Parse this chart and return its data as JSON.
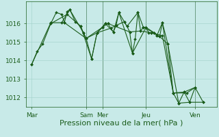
{
  "bg_color": "#c8eae8",
  "grid_color": "#a0d0c8",
  "line_color": "#1a5c1a",
  "marker_color": "#1a5c1a",
  "xlabel": "Pression niveau de la mer( hPa )",
  "xlabel_fontsize": 8,
  "tick_fontsize": 6.5,
  "ylim": [
    1011.5,
    1017.2
  ],
  "yticks": [
    1012,
    1013,
    1014,
    1015,
    1016
  ],
  "xtick_labels": [
    "Mar",
    "Sam",
    "Mer",
    "Jeu",
    "Ven"
  ],
  "xtick_positions": [
    0,
    10,
    13,
    21,
    30
  ],
  "xlim": [
    -1,
    34
  ],
  "vlines": [
    10,
    13,
    21,
    30
  ],
  "series1": [
    [
      0.0,
      1013.8
    ],
    [
      1.0,
      1014.5
    ],
    [
      2.0,
      1014.9
    ],
    [
      3.5,
      1016.0
    ],
    [
      4.5,
      1016.6
    ],
    [
      5.5,
      1016.5
    ],
    [
      6.0,
      1016.05
    ],
    [
      6.5,
      1016.65
    ],
    [
      7.0,
      1016.75
    ],
    [
      8.0,
      1016.1
    ],
    [
      9.0,
      1015.85
    ],
    [
      9.5,
      1015.5
    ],
    [
      10.0,
      1015.2
    ],
    [
      11.0,
      1014.1
    ],
    [
      12.0,
      1015.5
    ],
    [
      13.0,
      1015.8
    ],
    [
      13.5,
      1016.0
    ],
    [
      14.0,
      1016.0
    ],
    [
      14.5,
      1015.75
    ],
    [
      15.0,
      1015.55
    ],
    [
      15.5,
      1015.9
    ],
    [
      16.0,
      1016.6
    ],
    [
      17.0,
      1016.1
    ],
    [
      17.5,
      1015.85
    ],
    [
      18.0,
      1015.55
    ],
    [
      18.5,
      1014.4
    ],
    [
      19.0,
      1015.15
    ],
    [
      19.5,
      1016.6
    ],
    [
      20.0,
      1015.6
    ],
    [
      20.5,
      1015.8
    ],
    [
      21.0,
      1015.8
    ],
    [
      21.5,
      1015.5
    ],
    [
      22.0,
      1015.5
    ],
    [
      22.5,
      1015.5
    ],
    [
      23.0,
      1015.35
    ],
    [
      23.5,
      1015.3
    ],
    [
      24.0,
      1016.05
    ],
    [
      25.0,
      1014.9
    ],
    [
      26.0,
      1012.25
    ],
    [
      27.0,
      1011.7
    ],
    [
      28.0,
      1012.3
    ],
    [
      29.0,
      1011.75
    ],
    [
      30.0,
      1012.55
    ],
    [
      31.5,
      1011.75
    ]
  ],
  "series2": [
    [
      0.0,
      1013.8
    ],
    [
      3.5,
      1016.05
    ],
    [
      6.0,
      1016.05
    ],
    [
      10.0,
      1015.2
    ],
    [
      13.0,
      1015.8
    ],
    [
      14.0,
      1016.0
    ],
    [
      18.0,
      1015.55
    ],
    [
      20.0,
      1015.6
    ],
    [
      22.0,
      1015.5
    ],
    [
      24.0,
      1015.35
    ],
    [
      26.0,
      1012.25
    ],
    [
      28.0,
      1012.3
    ],
    [
      30.0,
      1012.55
    ]
  ],
  "series3": [
    [
      3.5,
      1016.0
    ],
    [
      6.5,
      1016.5
    ],
    [
      9.0,
      1015.85
    ],
    [
      11.0,
      1014.1
    ],
    [
      12.0,
      1015.5
    ],
    [
      13.5,
      1016.0
    ],
    [
      15.0,
      1015.55
    ],
    [
      16.0,
      1016.6
    ],
    [
      18.5,
      1014.4
    ],
    [
      21.0,
      1015.8
    ],
    [
      23.5,
      1015.3
    ],
    [
      25.0,
      1014.9
    ],
    [
      27.0,
      1011.7
    ],
    [
      29.0,
      1011.75
    ],
    [
      31.5,
      1011.75
    ]
  ],
  "series4": [
    [
      5.5,
      1016.05
    ],
    [
      7.0,
      1016.75
    ],
    [
      9.5,
      1015.5
    ],
    [
      10.0,
      1015.2
    ],
    [
      12.0,
      1015.5
    ],
    [
      14.5,
      1015.75
    ],
    [
      15.5,
      1015.9
    ],
    [
      17.0,
      1016.1
    ],
    [
      17.5,
      1015.85
    ],
    [
      19.5,
      1016.6
    ],
    [
      20.5,
      1015.8
    ],
    [
      22.5,
      1015.5
    ],
    [
      23.0,
      1015.35
    ],
    [
      24.0,
      1016.05
    ],
    [
      26.0,
      1012.25
    ],
    [
      28.5,
      1012.25
    ],
    [
      30.0,
      1012.55
    ]
  ]
}
